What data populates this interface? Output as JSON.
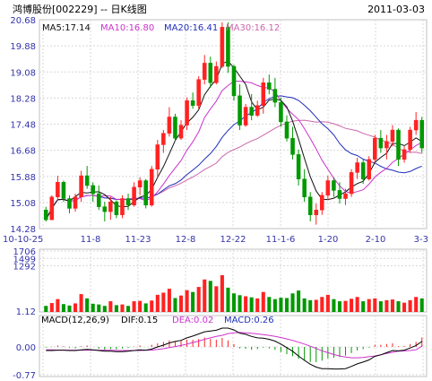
{
  "header": {
    "stock": "鸿博股份[002229] -- 日K线图",
    "date": "2011-03-03"
  },
  "price_legend": {
    "ma5": "MA5:17.14",
    "ma10": "MA10:16.80",
    "ma20": "MA20:16.41",
    "ma30": "MA30:16.12"
  },
  "macd_legend": {
    "macd": "MACD(12,26,9)",
    "dif": "DIF:0.15",
    "dea": "DEA:0.02",
    "macdv": "MACD:0.26"
  },
  "colors": {
    "up": "#ff2222",
    "down": "#009900",
    "ma5": "#111111",
    "ma10": "#cc33cc",
    "ma20": "#1f2fbb",
    "ma30": "#cc66aa",
    "dif": "#000000",
    "dea": "#cc33cc",
    "axis_label": "#3333aa",
    "grid": "#d8d8d8"
  },
  "chart_data": [
    {
      "type": "candlestick",
      "title": "鸿博股份[002229] -- 日K线图",
      "x_ticks": [
        "10-10-25",
        "11-8",
        "11-23",
        "12-8",
        "12-22",
        "11-1-6",
        "1-20",
        "2-10",
        "3-3"
      ],
      "y_ticks": [
        "20.68",
        "19.88",
        "19.08",
        "18.28",
        "17.48",
        "16.68",
        "15.88",
        "15.08",
        "14.28"
      ],
      "ylim": [
        14.28,
        20.68
      ],
      "ohlc": [
        [
          14.85,
          14.95,
          14.5,
          14.55
        ],
        [
          14.55,
          15.3,
          14.55,
          15.25
        ],
        [
          15.25,
          15.9,
          15.15,
          15.7
        ],
        [
          15.7,
          15.75,
          15.1,
          15.2
        ],
        [
          15.2,
          15.3,
          14.75,
          14.9
        ],
        [
          14.9,
          15.35,
          14.8,
          15.25
        ],
        [
          15.25,
          16.05,
          15.1,
          15.9
        ],
        [
          15.9,
          16.2,
          15.5,
          15.6
        ],
        [
          15.6,
          15.7,
          15.1,
          15.35
        ],
        [
          15.35,
          15.6,
          14.85,
          14.95
        ],
        [
          14.95,
          15.1,
          14.5,
          14.8
        ],
        [
          14.8,
          15.25,
          14.55,
          15.1
        ],
        [
          15.1,
          15.15,
          14.6,
          14.7
        ],
        [
          14.7,
          15.3,
          14.6,
          15.2
        ],
        [
          15.2,
          15.35,
          14.85,
          15.0
        ],
        [
          15.0,
          15.7,
          14.95,
          15.55
        ],
        [
          15.55,
          15.85,
          15.3,
          15.75
        ],
        [
          15.75,
          15.8,
          14.9,
          15.0
        ],
        [
          15.0,
          16.2,
          14.95,
          16.1
        ],
        [
          16.1,
          17.0,
          15.85,
          16.85
        ],
        [
          16.85,
          17.3,
          16.6,
          17.2
        ],
        [
          17.2,
          18.0,
          17.1,
          17.7
        ],
        [
          17.7,
          17.8,
          16.95,
          17.05
        ],
        [
          17.05,
          17.6,
          17.0,
          17.45
        ],
        [
          17.45,
          18.3,
          17.3,
          18.2
        ],
        [
          18.2,
          18.45,
          17.95,
          18.05
        ],
        [
          18.05,
          18.95,
          17.95,
          18.85
        ],
        [
          18.85,
          19.6,
          18.7,
          19.35
        ],
        [
          19.35,
          19.55,
          18.6,
          18.75
        ],
        [
          18.75,
          19.4,
          18.7,
          19.25
        ],
        [
          19.25,
          20.6,
          19.2,
          20.45
        ],
        [
          20.45,
          20.6,
          19.05,
          19.25
        ],
        [
          19.25,
          19.3,
          18.2,
          18.35
        ],
        [
          18.35,
          18.7,
          17.3,
          17.45
        ],
        [
          17.45,
          18.1,
          17.4,
          18.0
        ],
        [
          18.0,
          18.4,
          17.6,
          17.75
        ],
        [
          17.75,
          18.2,
          17.7,
          18.05
        ],
        [
          18.05,
          18.9,
          17.8,
          18.75
        ],
        [
          18.75,
          19.0,
          18.4,
          18.55
        ],
        [
          18.55,
          18.9,
          18.0,
          18.15
        ],
        [
          18.15,
          18.3,
          17.4,
          17.55
        ],
        [
          17.55,
          17.75,
          16.95,
          17.05
        ],
        [
          17.05,
          17.4,
          16.4,
          16.55
        ],
        [
          16.55,
          16.7,
          15.6,
          15.8
        ],
        [
          15.8,
          16.1,
          15.1,
          15.25
        ],
        [
          15.25,
          15.4,
          14.5,
          14.7
        ],
        [
          14.7,
          15.05,
          14.4,
          14.85
        ],
        [
          14.85,
          15.4,
          14.7,
          15.3
        ],
        [
          15.3,
          15.9,
          15.15,
          15.75
        ],
        [
          15.75,
          15.85,
          15.25,
          15.45
        ],
        [
          15.45,
          15.7,
          15.05,
          15.2
        ],
        [
          15.2,
          15.5,
          15.0,
          15.35
        ],
        [
          15.35,
          16.1,
          15.25,
          16.0
        ],
        [
          16.0,
          16.45,
          15.8,
          16.3
        ],
        [
          16.3,
          16.4,
          15.65,
          15.8
        ],
        [
          15.8,
          16.5,
          15.75,
          16.4
        ],
        [
          16.4,
          17.15,
          16.3,
          17.05
        ],
        [
          17.05,
          17.3,
          16.6,
          16.75
        ],
        [
          16.75,
          17.15,
          16.4,
          16.95
        ],
        [
          16.95,
          17.45,
          16.8,
          17.3
        ],
        [
          17.3,
          17.35,
          16.2,
          16.4
        ],
        [
          16.4,
          16.8,
          16.3,
          16.7
        ],
        [
          16.7,
          17.4,
          16.6,
          17.3
        ],
        [
          17.3,
          17.85,
          17.15,
          17.6
        ],
        [
          17.6,
          17.7,
          16.6,
          16.75
        ]
      ],
      "macd_histogram": [
        -0.02,
        0.01,
        0.04,
        0.02,
        -0.02,
        -0.04,
        0.02,
        0.04,
        0.0,
        -0.05,
        -0.08,
        -0.06,
        -0.07,
        -0.04,
        -0.03,
        0.01,
        0.04,
        0.0,
        0.06,
        0.1,
        0.14,
        0.18,
        0.15,
        0.17,
        0.2,
        0.2,
        0.22,
        0.26,
        0.22,
        0.2,
        0.25,
        0.18,
        0.08,
        -0.04,
        -0.05,
        -0.08,
        -0.06,
        -0.02,
        -0.04,
        -0.08,
        -0.14,
        -0.2,
        -0.26,
        -0.33,
        -0.38,
        -0.42,
        -0.42,
        -0.38,
        -0.32,
        -0.3,
        -0.28,
        -0.24,
        -0.17,
        -0.1,
        -0.06,
        -0.02,
        0.06,
        0.06,
        0.08,
        0.1,
        0.02,
        0.03,
        0.08,
        0.14,
        0.26
      ],
      "macd_dif": [
        -0.1,
        -0.1,
        -0.09,
        -0.09,
        -0.1,
        -0.1,
        -0.08,
        -0.07,
        -0.08,
        -0.1,
        -0.12,
        -0.12,
        -0.13,
        -0.13,
        -0.12,
        -0.1,
        -0.08,
        -0.09,
        -0.06,
        0.0,
        0.05,
        0.11,
        0.15,
        0.18,
        0.25,
        0.3,
        0.36,
        0.42,
        0.44,
        0.46,
        0.52,
        0.52,
        0.47,
        0.38,
        0.35,
        0.29,
        0.25,
        0.24,
        0.21,
        0.16,
        0.08,
        -0.02,
        -0.12,
        -0.25,
        -0.37,
        -0.48,
        -0.56,
        -0.6,
        -0.6,
        -0.61,
        -0.61,
        -0.6,
        -0.54,
        -0.47,
        -0.42,
        -0.36,
        -0.26,
        -0.22,
        -0.16,
        -0.1,
        -0.11,
        -0.09,
        -0.03,
        0.04,
        0.15
      ],
      "macd_dea": [
        -0.08,
        -0.08,
        -0.09,
        -0.09,
        -0.09,
        -0.09,
        -0.09,
        -0.09,
        -0.09,
        -0.09,
        -0.09,
        -0.09,
        -0.1,
        -0.1,
        -0.1,
        -0.1,
        -0.1,
        -0.09,
        -0.09,
        -0.07,
        -0.05,
        -0.02,
        0.01,
        0.04,
        0.08,
        0.12,
        0.16,
        0.21,
        0.25,
        0.29,
        0.32,
        0.37,
        0.39,
        0.4,
        0.39,
        0.38,
        0.36,
        0.34,
        0.32,
        0.29,
        0.26,
        0.22,
        0.18,
        0.13,
        0.08,
        0.02,
        -0.04,
        -0.11,
        -0.16,
        -0.21,
        -0.25,
        -0.28,
        -0.3,
        -0.3,
        -0.29,
        -0.27,
        -0.25,
        -0.22,
        -0.18,
        -0.15,
        -0.12,
        -0.11,
        -0.1,
        -0.08,
        0.02
      ],
      "macd_y_ticks": [
        "0.00",
        "-0.77"
      ],
      "volume_y_ticks": [
        "1706",
        "1499",
        "1292",
        "1.12"
      ],
      "volume": [
        170,
        250,
        360,
        220,
        180,
        240,
        500,
        380,
        230,
        210,
        170,
        300,
        190,
        210,
        170,
        300,
        310,
        240,
        320,
        480,
        540,
        650,
        390,
        460,
        610,
        560,
        700,
        910,
        870,
        720,
        1030,
        680,
        520,
        470,
        440,
        410,
        380,
        560,
        420,
        360,
        400,
        390,
        520,
        600,
        380,
        330,
        340,
        420,
        480,
        360,
        300,
        310,
        370,
        420,
        300,
        360,
        380,
        300,
        330,
        350,
        300,
        260,
        330,
        420,
        380
      ]
    }
  ]
}
